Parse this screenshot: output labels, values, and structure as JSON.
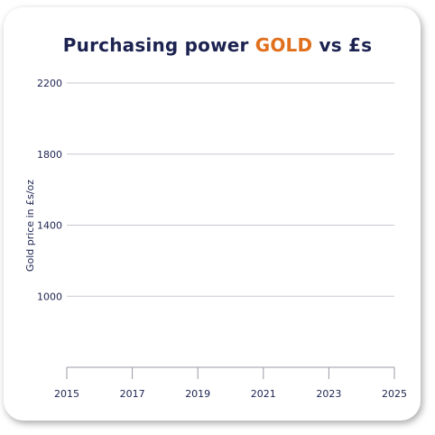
{
  "chart_data": {
    "type": "line",
    "title_main": "Purchasing power ",
    "title_accent": "GOLD",
    "title_tail": " vs £s",
    "ylabel": "Gold price in £s/oz",
    "xlabel": "",
    "x_ticks": [
      "2015",
      "2017",
      "2019",
      "2021",
      "2023",
      "2025"
    ],
    "y_ticks": [
      "2200",
      "1800",
      "1400",
      "1000"
    ],
    "xlim": [
      2015,
      2025
    ],
    "ylim": [
      600,
      2200
    ],
    "grid": true,
    "series": []
  },
  "colors": {
    "title": "#1c2350",
    "accent": "#e0701e",
    "grid": "#c9c9d2",
    "axis": "#9a9aa6"
  }
}
